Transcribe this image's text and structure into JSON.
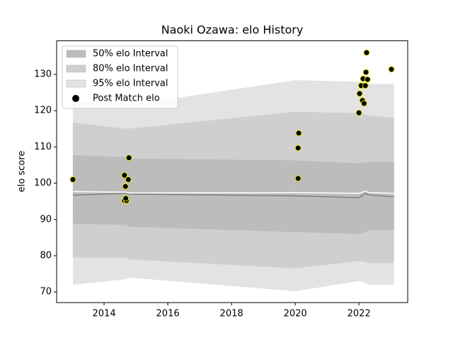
{
  "chart_data": {
    "type": "scatter",
    "title": "Naoki Ozawa: elo History",
    "ylabel": "elo score",
    "xlim": [
      2012.51,
      2023.53
    ],
    "ylim": [
      67.07,
      139.26
    ],
    "xticks": [
      2014,
      2016,
      2018,
      2020,
      2022
    ],
    "yticks": [
      70,
      80,
      90,
      100,
      110,
      120,
      130
    ],
    "legend": "upper left",
    "band_x": [
      2013.02,
      2014.7,
      2014.75,
      2020.0,
      2022.0,
      2022.2,
      2022.3,
      2023.1
    ],
    "bands": [
      {
        "name": "95% elo Interval",
        "color": "#e3e3e3",
        "lower": [
          72,
          73.5,
          74,
          70.2,
          73,
          72.5,
          72,
          72
        ],
        "upper": [
          122.5,
          122,
          121.5,
          128.4,
          128,
          127.6,
          127.4,
          127.4
        ]
      },
      {
        "name": "80% elo Interval",
        "color": "#cfcfcf",
        "lower": [
          79.5,
          79.5,
          79,
          76.5,
          78.5,
          78.3,
          78,
          78
        ],
        "upper": [
          116.7,
          115,
          115,
          119.7,
          119.3,
          119,
          118.7,
          118
        ]
      },
      {
        "name": "50% elo Interval",
        "color": "#bcbcbc",
        "lower": [
          88.8,
          88.5,
          88,
          86.5,
          86,
          86.5,
          87,
          87
        ],
        "upper": [
          107.7,
          107.2,
          106.8,
          106.3,
          105.5,
          105.8,
          105.8,
          105.8
        ]
      }
    ],
    "lines": [
      {
        "color": "#808080",
        "values": [
          96.7,
          97.2,
          97,
          96.5,
          96,
          97.2,
          96.8,
          96.2
        ]
      },
      {
        "color": "#ffffff",
        "values": [
          97.7,
          97.5,
          97.3,
          97.4,
          97.2,
          97.8,
          97.4,
          97.2
        ]
      }
    ],
    "points": {
      "name": "Post Match elo",
      "color": "#000000",
      "edgecolor": "#e8e800",
      "x": [
        2013.02,
        2014.64,
        2014.67,
        2014.64,
        2014.7,
        2014.68,
        2014.76,
        2014.78,
        2020.09,
        2020.09,
        2020.11,
        2022.0,
        2022.02,
        2022.07,
        2022.13,
        2022.11,
        2022.16,
        2022.2,
        2022.22,
        2022.27,
        2022.24,
        2023.02
      ],
      "values": [
        101,
        102.2,
        99.1,
        95.2,
        95.2,
        95.8,
        101,
        107,
        101.3,
        109.7,
        113.8,
        119.4,
        124.7,
        126.9,
        128.8,
        122.8,
        122,
        126.9,
        130.6,
        128.6,
        136,
        131.4
      ]
    }
  }
}
